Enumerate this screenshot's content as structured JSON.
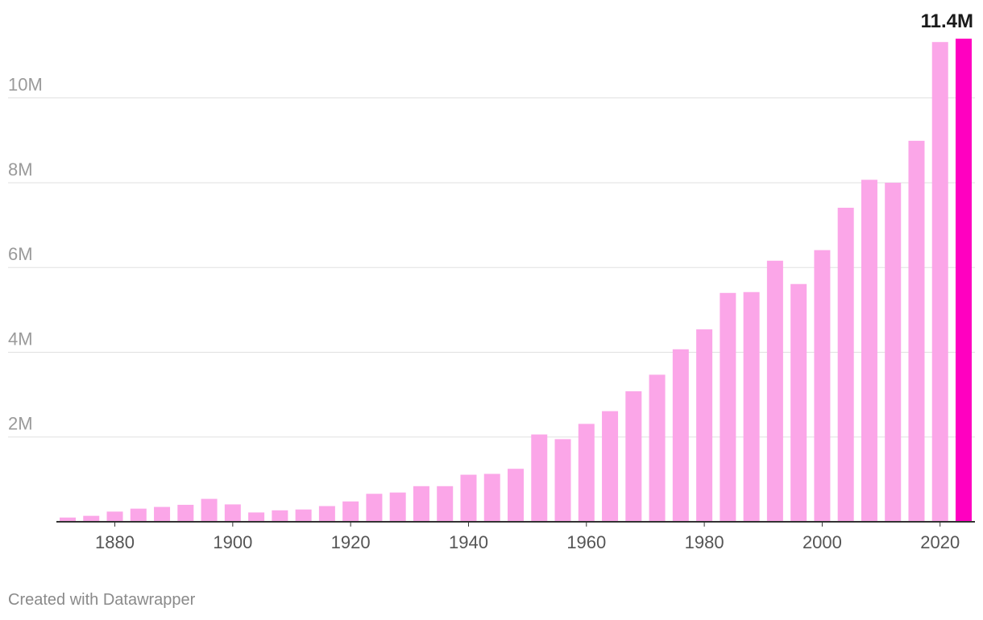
{
  "chart_data": {
    "type": "bar",
    "title": "",
    "xlabel": "",
    "ylabel": "",
    "ylim": [
      0,
      11400000
    ],
    "grid": true,
    "colors": {
      "bar": "#fba6e8",
      "highlight": "#ff00c0",
      "grid": "#e0e0e0",
      "axis": "#333333",
      "tick_text": "#9a9a9a",
      "label_text": "#1a1a1a"
    },
    "x": [
      1872,
      1876,
      1880,
      1884,
      1888,
      1892,
      1896,
      1900,
      1904,
      1908,
      1912,
      1916,
      1920,
      1924,
      1928,
      1932,
      1936,
      1940,
      1944,
      1948,
      1952,
      1956,
      1960,
      1964,
      1968,
      1972,
      1976,
      1980,
      1984,
      1988,
      1992,
      1996,
      2000,
      2004,
      2008,
      2012,
      2016,
      2020,
      2024
    ],
    "values": [
      100000,
      140000,
      240000,
      310000,
      350000,
      400000,
      540000,
      410000,
      220000,
      270000,
      290000,
      370000,
      480000,
      660000,
      690000,
      840000,
      840000,
      1110000,
      1130000,
      1250000,
      2060000,
      1950000,
      2310000,
      2610000,
      3080000,
      3470000,
      4070000,
      4540000,
      5400000,
      5420000,
      6160000,
      5610000,
      6410000,
      7410000,
      8070000,
      8000000,
      8990000,
      11320000,
      11400000
    ],
    "highlight": {
      "x": 2024,
      "label": "11.4M"
    },
    "y_ticks": [
      {
        "value": 2000000,
        "label": "2M"
      },
      {
        "value": 4000000,
        "label": "4M"
      },
      {
        "value": 6000000,
        "label": "6M"
      },
      {
        "value": 8000000,
        "label": "8M"
      },
      {
        "value": 10000000,
        "label": "10M"
      }
    ],
    "x_ticks": [
      {
        "value": 1880,
        "label": "1880"
      },
      {
        "value": 1900,
        "label": "1900"
      },
      {
        "value": 1920,
        "label": "1920"
      },
      {
        "value": 1940,
        "label": "1940"
      },
      {
        "value": 1960,
        "label": "1960"
      },
      {
        "value": 1980,
        "label": "1980"
      },
      {
        "value": 2000,
        "label": "2000"
      },
      {
        "value": 2020,
        "label": "2020"
      }
    ]
  },
  "footer": {
    "credit": "Created with Datawrapper"
  }
}
